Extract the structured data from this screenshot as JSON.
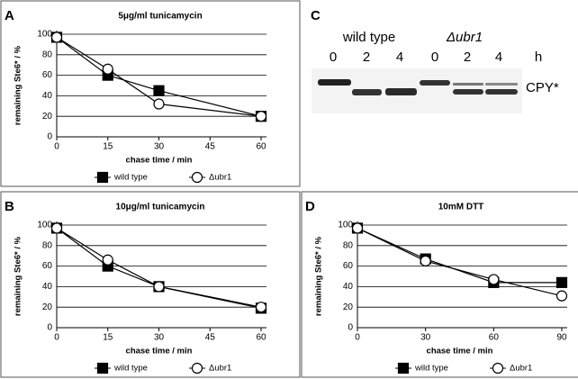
{
  "chart_data": [
    {
      "type": "line",
      "panel": "A",
      "title": "5μg/ml tunicamycin",
      "xlabel": "chase time / min",
      "ylabel": "remaining Ste6* / %",
      "x": [
        0,
        15,
        30,
        60
      ],
      "xlim": [
        0,
        60
      ],
      "xticks": [
        0,
        15,
        30,
        45,
        60
      ],
      "ylim": [
        0,
        100
      ],
      "yticks": [
        0,
        20,
        40,
        60,
        80,
        100
      ],
      "grid": true,
      "series": [
        {
          "name": "wild type",
          "color": "#000000",
          "marker": "square",
          "marker_fill": "#000000",
          "values": [
            97,
            60,
            45,
            20
          ]
        },
        {
          "name": "Δubr1",
          "color": "#000000",
          "marker": "circle",
          "marker_fill": "#ffffff",
          "values": [
            97,
            66,
            32,
            20
          ]
        }
      ]
    },
    {
      "type": "line",
      "panel": "B",
      "title": "10μg/ml tunicamycin",
      "xlabel": "chase time / min",
      "ylabel": "remaining Ste6* / %",
      "x": [
        0,
        15,
        30,
        60
      ],
      "xlim": [
        0,
        60
      ],
      "xticks": [
        0,
        15,
        30,
        45,
        60
      ],
      "ylim": [
        0,
        100
      ],
      "yticks": [
        0,
        20,
        40,
        60,
        80,
        100
      ],
      "grid": true,
      "series": [
        {
          "name": "wild type",
          "color": "#000000",
          "marker": "square",
          "marker_fill": "#000000",
          "values": [
            97,
            60,
            40,
            19
          ]
        },
        {
          "name": "Δubr1",
          "color": "#000000",
          "marker": "circle",
          "marker_fill": "#ffffff",
          "values": [
            97,
            66,
            40,
            20
          ]
        }
      ]
    },
    {
      "type": "line",
      "panel": "D",
      "title": "10mM DTT",
      "xlabel": "chase time / min",
      "ylabel": "remaining Ste6* / %",
      "x": [
        0,
        30,
        60,
        90
      ],
      "xlim": [
        0,
        90
      ],
      "xticks": [
        0,
        30,
        60,
        90
      ],
      "ylim": [
        0,
        100
      ],
      "yticks": [
        0,
        20,
        40,
        60,
        80,
        100
      ],
      "grid": true,
      "series": [
        {
          "name": "wild type",
          "color": "#000000",
          "marker": "square",
          "marker_fill": "#000000",
          "values": [
            97,
            67,
            44,
            44
          ]
        },
        {
          "name": "Δubr1",
          "color": "#000000",
          "marker": "circle",
          "marker_fill": "#ffffff",
          "values": [
            97,
            65,
            47,
            31
          ]
        }
      ]
    }
  ],
  "gel": {
    "panel": "C",
    "groups": [
      "wild type",
      "Δubr1"
    ],
    "lanes": [
      "0",
      "2",
      "4",
      "0",
      "2",
      "4"
    ],
    "unit": "h",
    "band_label": "CPY*"
  }
}
